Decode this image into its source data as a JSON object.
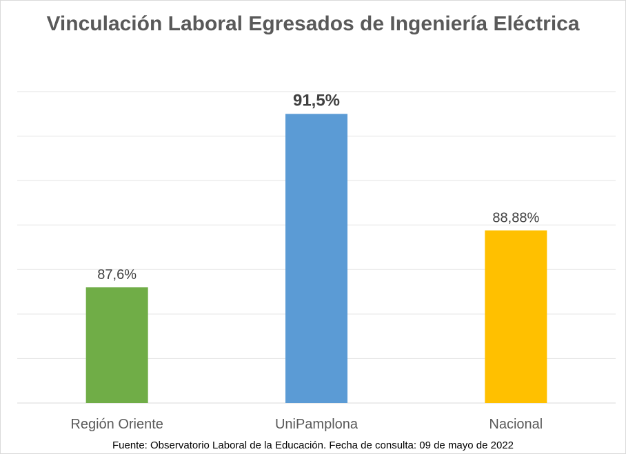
{
  "chart_data": {
    "type": "bar",
    "title": "Vinculación Laboral Egresados de Ingeniería Eléctrica",
    "categories": [
      "Región Oriente",
      "UniPamplona",
      "Nacional"
    ],
    "values": [
      87.6,
      91.5,
      88.88
    ],
    "data_labels": [
      "87,6%",
      "91,5%",
      "88,88%"
    ],
    "colors": [
      "#70ad47",
      "#5b9bd5",
      "#ffc000"
    ],
    "ylim": [
      85,
      92
    ],
    "grid": true,
    "y_axis_labels_visible": false,
    "legend": "none",
    "xlabel": "",
    "ylabel": ""
  },
  "footer": "Fuente: Observatorio Laboral de la Educación. Fecha de consulta: 09 de mayo de 2022"
}
